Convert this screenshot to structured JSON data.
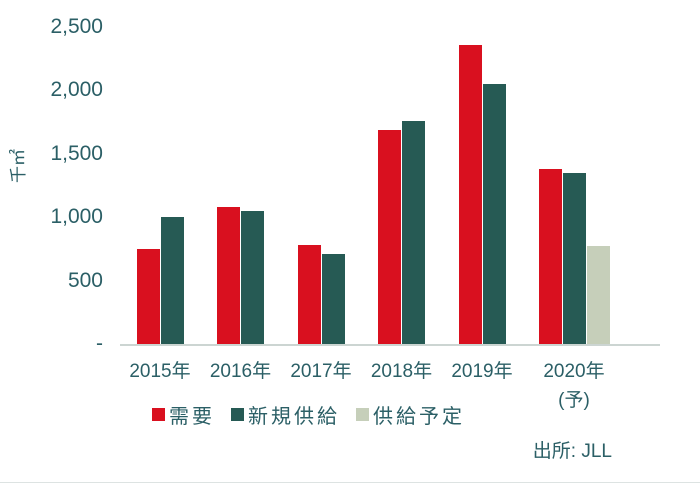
{
  "chart_data": {
    "type": "bar",
    "title": "",
    "xlabel": "",
    "ylabel": "千㎡",
    "ylim": [
      0,
      2500
    ],
    "grid": false,
    "legend_position": "bottom",
    "categories": [
      "2015年",
      "2016年",
      "2017年",
      "2018年",
      "2019年",
      "2020年"
    ],
    "category_sublabels": [
      "",
      "",
      "",
      "",
      "",
      "(予)"
    ],
    "yticks": [
      {
        "value": 2500,
        "label": "2,500"
      },
      {
        "value": 2000,
        "label": "2,000"
      },
      {
        "value": 1500,
        "label": "1,500"
      },
      {
        "value": 1000,
        "label": "1,000"
      },
      {
        "value": 500,
        "label": "500"
      },
      {
        "value": 0,
        "label": "-"
      }
    ],
    "series": [
      {
        "name": "需要",
        "color": "#d9101f",
        "values": [
          750,
          1080,
          780,
          1690,
          2360,
          1380
        ]
      },
      {
        "name": "新規供給",
        "color": "#265a54",
        "values": [
          1000,
          1050,
          710,
          1760,
          2050,
          1350
        ]
      },
      {
        "name": "供給予定",
        "color": "#c6cfba",
        "values": [
          null,
          null,
          null,
          null,
          null,
          770
        ]
      }
    ]
  },
  "source": "出所: JLL",
  "colors": {
    "text": "#2b5f66",
    "axis_line": "#ccd5d2",
    "background": "#ffffff"
  }
}
